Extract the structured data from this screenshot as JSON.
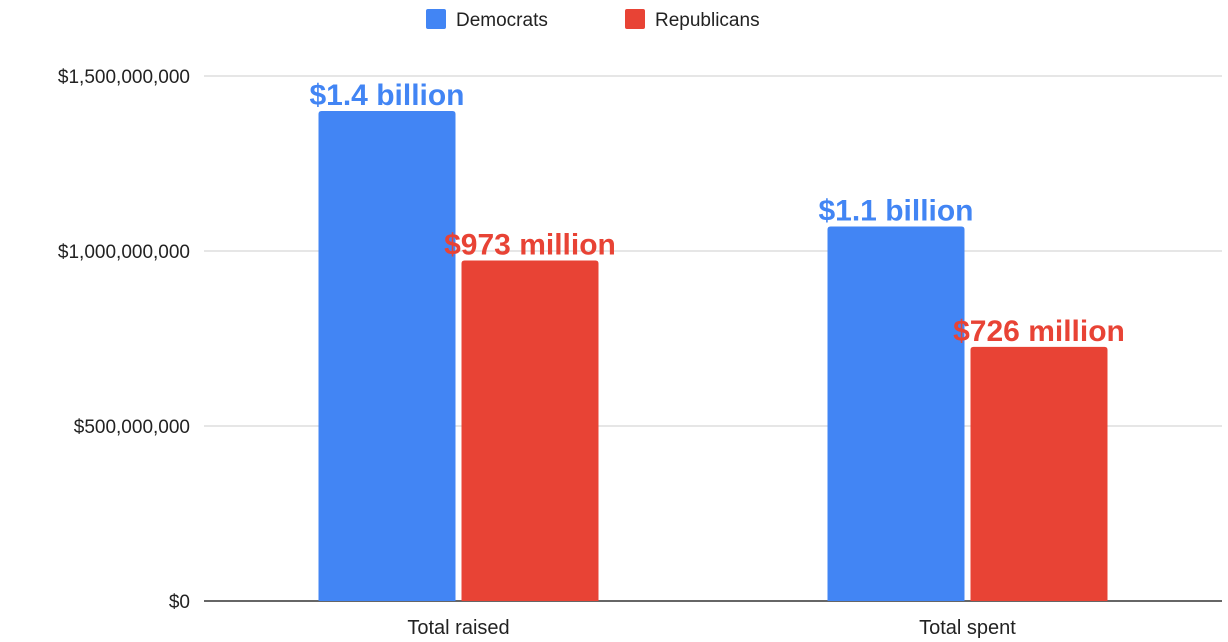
{
  "chart_data": {
    "type": "bar",
    "categories": [
      "Total raised",
      "Total spent"
    ],
    "series": [
      {
        "name": "Democrats",
        "color": "#4285f4",
        "values": [
          1400000000,
          1070000000
        ],
        "data_labels": [
          "$1.4 billion",
          "$1.1 billion"
        ]
      },
      {
        "name": "Republicans",
        "color": "#e84335",
        "values": [
          973000000,
          726000000
        ],
        "data_labels": [
          "$973 million",
          "$726 million"
        ]
      }
    ],
    "y_ticks": [
      {
        "value": 0,
        "label": "$0"
      },
      {
        "value": 500000000,
        "label": "$500,000,000"
      },
      {
        "value": 1000000000,
        "label": "$1,000,000,000"
      },
      {
        "value": 1500000000,
        "label": "$1,500,000,000"
      }
    ],
    "ylim": [
      0,
      1500000000
    ],
    "title": "",
    "xlabel": "",
    "ylabel": "",
    "grid": true,
    "legend_position": "top-center"
  }
}
